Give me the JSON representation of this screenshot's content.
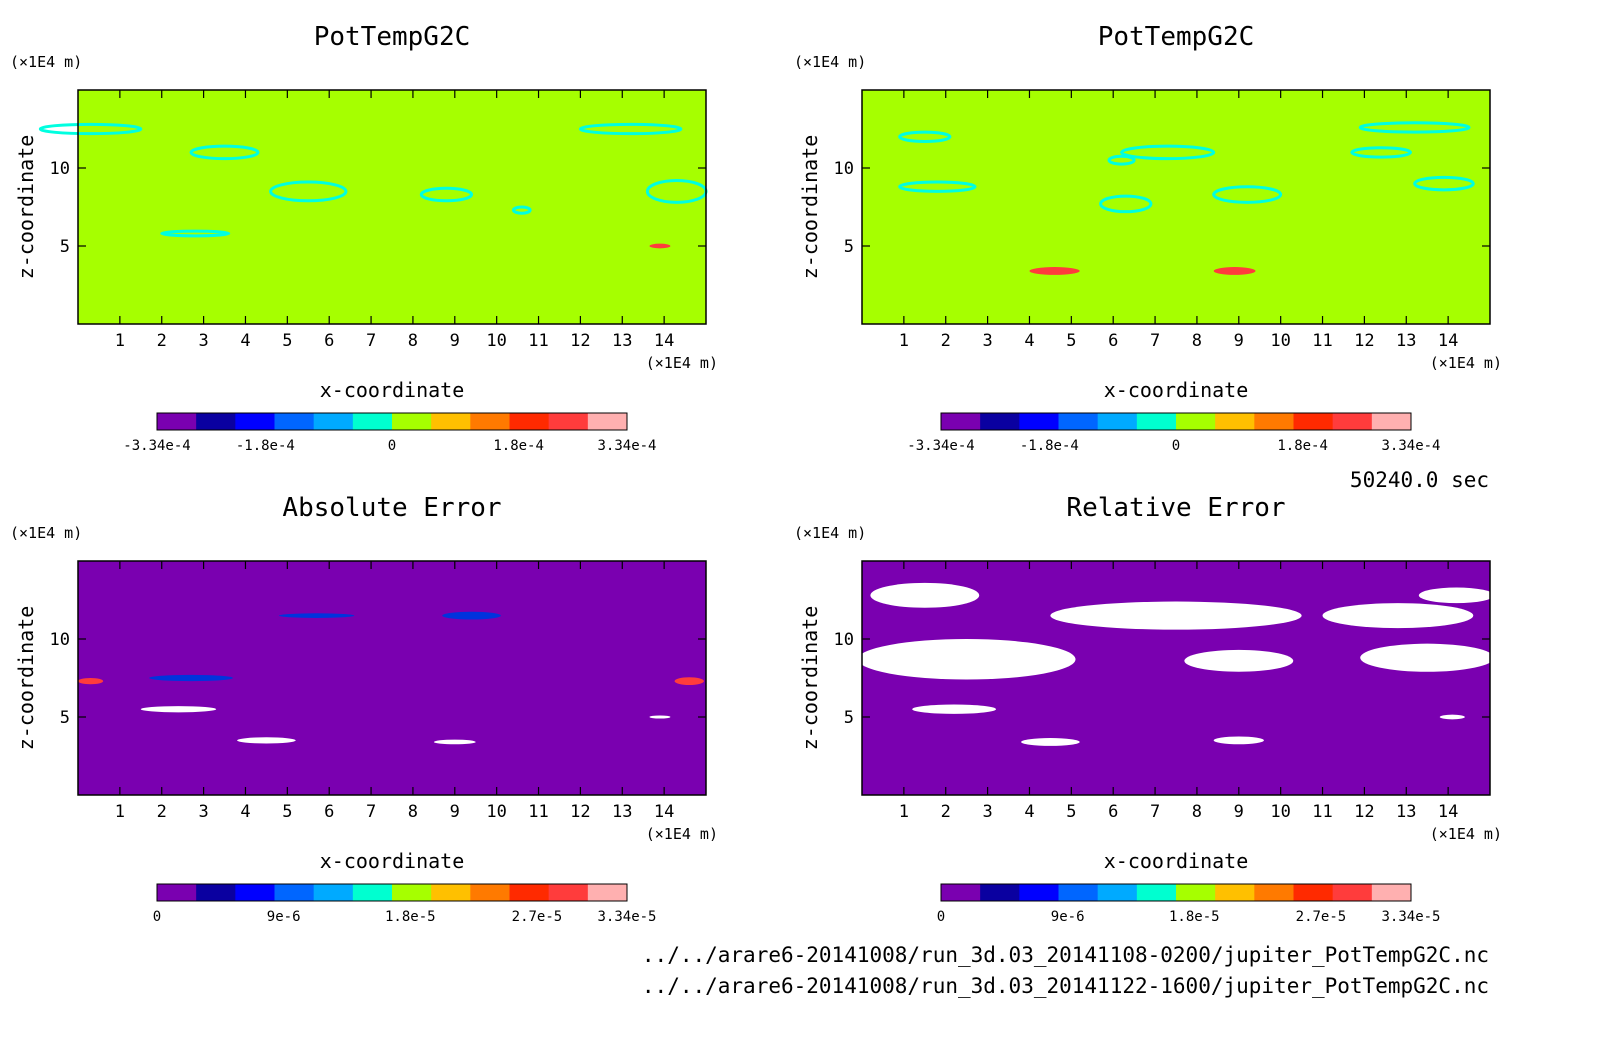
{
  "time_label": "50240.0 sec",
  "files": [
    "../../arare6-20141008/run_3d.03_20141108-0200/jupiter_PotTempG2C.nc",
    "../../arare6-20141008/run_3d.03_20141122-1600/jupiter_PotTempG2C.nc"
  ],
  "colors": {
    "background_zero": "#a6ff00",
    "background_min": "#7a00b0",
    "contour_cyan": "#00ffe0",
    "scale_pos": [
      "#a6ff00",
      "#ffc000",
      "#ff7a00",
      "#ff2a00",
      "#ff3c3c",
      "#ffb0b0"
    ],
    "scale_neg": [
      "#7a00b0",
      "#0a00a0",
      "#0000ff",
      "#0066ff",
      "#00aaff",
      "#00ffd0"
    ],
    "error_scale": [
      "#7a00b0",
      "#0a00a0",
      "#0000ff",
      "#0066ff",
      "#00aaff",
      "#00ffd0",
      "#a6ff00",
      "#ffc000",
      "#ff7a00",
      "#ff2a00",
      "#ff3c3c",
      "#ffb0b0"
    ]
  },
  "chart_data": [
    {
      "type": "heatmap",
      "title": "PotTempG2C",
      "xlabel": "x-coordinate",
      "ylabel": "z-coordinate",
      "x_unit": "(×1E4 m)",
      "y_unit": "(×1E4 m)",
      "xlim": [
        0,
        15
      ],
      "ylim": [
        0,
        15
      ],
      "x_ticks": [
        "1",
        "2",
        "3",
        "4",
        "5",
        "6",
        "7",
        "8",
        "9",
        "10",
        "11",
        "12",
        "13",
        "14"
      ],
      "y_ticks": [
        "5",
        "10"
      ],
      "colorbar_labels": [
        "-3.34e-4",
        "-1.8e-4",
        "0",
        "1.8e-4",
        "3.34e-4"
      ],
      "colorbar_range": [
        -0.000334,
        0.000334
      ],
      "dominant_value": 0
    },
    {
      "type": "heatmap",
      "title": "PotTempG2C",
      "xlabel": "x-coordinate",
      "ylabel": "z-coordinate",
      "x_unit": "(×1E4 m)",
      "y_unit": "(×1E4 m)",
      "xlim": [
        0,
        15
      ],
      "ylim": [
        0,
        15
      ],
      "x_ticks": [
        "1",
        "2",
        "3",
        "4",
        "5",
        "6",
        "7",
        "8",
        "9",
        "10",
        "11",
        "12",
        "13",
        "14"
      ],
      "y_ticks": [
        "5",
        "10"
      ],
      "colorbar_labels": [
        "-3.34e-4",
        "-1.8e-4",
        "0",
        "1.8e-4",
        "3.34e-4"
      ],
      "colorbar_range": [
        -0.000334,
        0.000334
      ],
      "dominant_value": 0
    },
    {
      "type": "heatmap",
      "title": "Absolute Error",
      "xlabel": "x-coordinate",
      "ylabel": "z-coordinate",
      "x_unit": "(×1E4 m)",
      "y_unit": "(×1E4 m)",
      "xlim": [
        0,
        15
      ],
      "ylim": [
        0,
        15
      ],
      "x_ticks": [
        "1",
        "2",
        "3",
        "4",
        "5",
        "6",
        "7",
        "8",
        "9",
        "10",
        "11",
        "12",
        "13",
        "14"
      ],
      "y_ticks": [
        "5",
        "10"
      ],
      "colorbar_labels": [
        "0",
        "9e-6",
        "1.8e-5",
        "2.7e-5",
        "3.34e-5"
      ],
      "colorbar_range": [
        0,
        3.34e-05
      ],
      "dominant_value": 0
    },
    {
      "type": "heatmap",
      "title": "Relative Error",
      "xlabel": "x-coordinate",
      "ylabel": "z-coordinate",
      "x_unit": "(×1E4 m)",
      "y_unit": "(×1E4 m)",
      "xlim": [
        0,
        15
      ],
      "ylim": [
        0,
        15
      ],
      "x_ticks": [
        "1",
        "2",
        "3",
        "4",
        "5",
        "6",
        "7",
        "8",
        "9",
        "10",
        "11",
        "12",
        "13",
        "14"
      ],
      "y_ticks": [
        "5",
        "10"
      ],
      "colorbar_labels": [
        "0",
        "9e-6",
        "1.8e-5",
        "2.7e-5",
        "3.34e-5"
      ],
      "colorbar_range": [
        0,
        3.34e-05
      ],
      "dominant_value": 0
    }
  ]
}
